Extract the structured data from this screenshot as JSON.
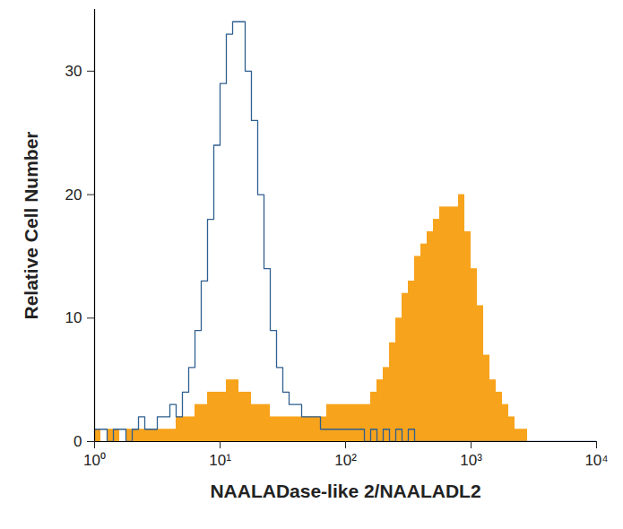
{
  "chart_data": {
    "type": "histogram",
    "x_label": "NAALADase-like 2/NAALADL2",
    "y_label": "Relative Cell Number",
    "log": "x",
    "xlim": [
      1,
      10000
    ],
    "xticks": [
      {
        "value": 1,
        "label": "10⁰"
      },
      {
        "value": 10,
        "label": "10¹"
      },
      {
        "value": 100,
        "label": "10²"
      },
      {
        "value": 1000,
        "label": "10³"
      },
      {
        "value": 10000,
        "label": "10⁴"
      }
    ],
    "ylim": [
      0,
      35
    ],
    "yticks": [
      0,
      10,
      20,
      30
    ],
    "bins": [
      1,
      1.122,
      1.259,
      1.413,
      1.585,
      1.778,
      1.995,
      2.239,
      2.512,
      2.818,
      3.162,
      3.548,
      3.981,
      4.467,
      5.012,
      5.623,
      6.31,
      7.079,
      7.943,
      8.913,
      10,
      11.22,
      12.59,
      14.13,
      15.85,
      17.78,
      19.95,
      22.39,
      25.12,
      28.18,
      31.62,
      35.48,
      39.81,
      44.67,
      50.12,
      56.23,
      63.1,
      70.79,
      79.43,
      89.13,
      100,
      112.2,
      125.9,
      141.3,
      158.5,
      177.8,
      199.5,
      223.9,
      251.2,
      281.8,
      316.2,
      354.8,
      398.1,
      446.7,
      501.2,
      562.3,
      631,
      707.9,
      794.3,
      891.3,
      1000,
      1122,
      1259,
      1413,
      1585,
      1778,
      1995,
      2239,
      2512,
      2818,
      3162,
      3548,
      3981,
      4467,
      5012,
      5623,
      6310,
      7079,
      7943,
      8913,
      10000
    ],
    "series": [
      {
        "type": "bar",
        "color": "#f7a31c",
        "values": [
          1,
          0,
          1,
          1,
          0,
          1,
          1,
          1,
          1,
          1,
          1,
          1,
          1,
          2,
          2,
          2,
          3,
          3,
          4,
          4,
          4,
          5,
          5,
          4,
          4,
          3,
          3,
          3,
          2,
          2,
          2,
          2,
          2,
          2,
          2,
          2,
          2,
          3,
          3,
          3,
          3,
          3,
          3,
          3,
          4,
          5,
          6,
          8,
          10,
          12,
          13,
          15,
          16,
          17,
          18,
          19,
          19,
          19,
          20,
          17,
          14,
          11,
          7,
          5,
          4,
          3,
          2,
          1,
          1,
          0,
          0,
          0,
          0,
          0,
          0,
          0,
          0,
          0,
          0,
          0
        ]
      },
      {
        "type": "line",
        "line_style": "step",
        "color": "#2f5f8f",
        "values": [
          1,
          1,
          0,
          1,
          1,
          0,
          1,
          2,
          1,
          1,
          2,
          2,
          3,
          2,
          4,
          6,
          9,
          13,
          18,
          24,
          29,
          33,
          34,
          34,
          30,
          26,
          20,
          14,
          9,
          6,
          4,
          3,
          3,
          2,
          2,
          2,
          1,
          1,
          1,
          1,
          1,
          1,
          1,
          0,
          1,
          0,
          1,
          0,
          1,
          0,
          1,
          0,
          0,
          0,
          0,
          0,
          0,
          0,
          0,
          0,
          0,
          0,
          0,
          0,
          0,
          0,
          0,
          0,
          0,
          0,
          0,
          0,
          0,
          0,
          0,
          0,
          0,
          0,
          0,
          0
        ]
      }
    ]
  }
}
